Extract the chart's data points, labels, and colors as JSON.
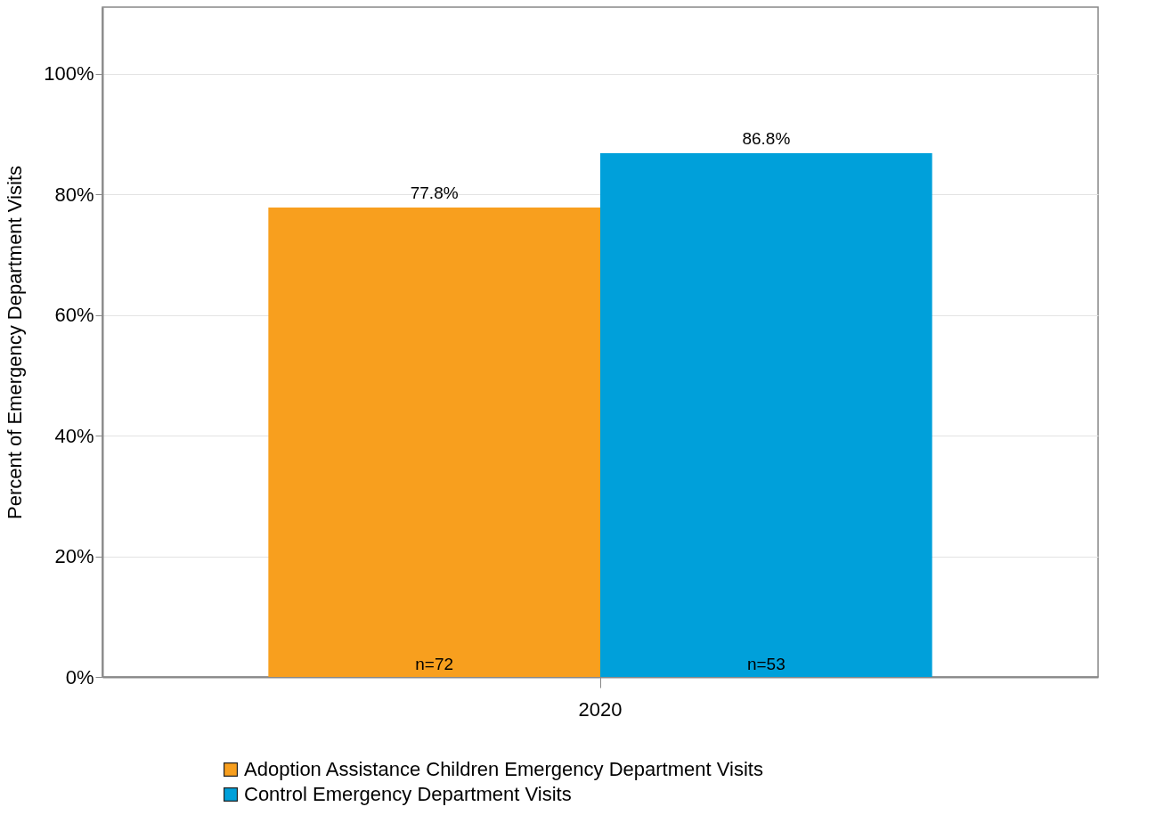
{
  "chart_data": {
    "type": "bar",
    "ylabel": "Percent of Emergency Department Visits",
    "categories": [
      "2020"
    ],
    "series": [
      {
        "name": "Adoption Assistance Children Emergency Department Visits",
        "color": "#f89f1e",
        "values": [
          77.8
        ],
        "value_labels": [
          "77.8%"
        ]
      },
      {
        "name": "Control Emergency Department Visits",
        "color": "#00a0da",
        "values": [
          86.8
        ],
        "value_labels": [
          "86.8%"
        ]
      }
    ],
    "ylim": [
      0,
      111
    ],
    "yticks": [
      {
        "value": 0,
        "label": "0%"
      },
      {
        "value": 20,
        "label": "20%"
      },
      {
        "value": 40,
        "label": "40%"
      },
      {
        "value": 60,
        "label": "60%"
      },
      {
        "value": 80,
        "label": "80%"
      },
      {
        "value": 100,
        "label": "100%"
      }
    ],
    "grid": "y",
    "legend": "bottom",
    "annotations": [
      "n=72",
      "n=53"
    ]
  }
}
